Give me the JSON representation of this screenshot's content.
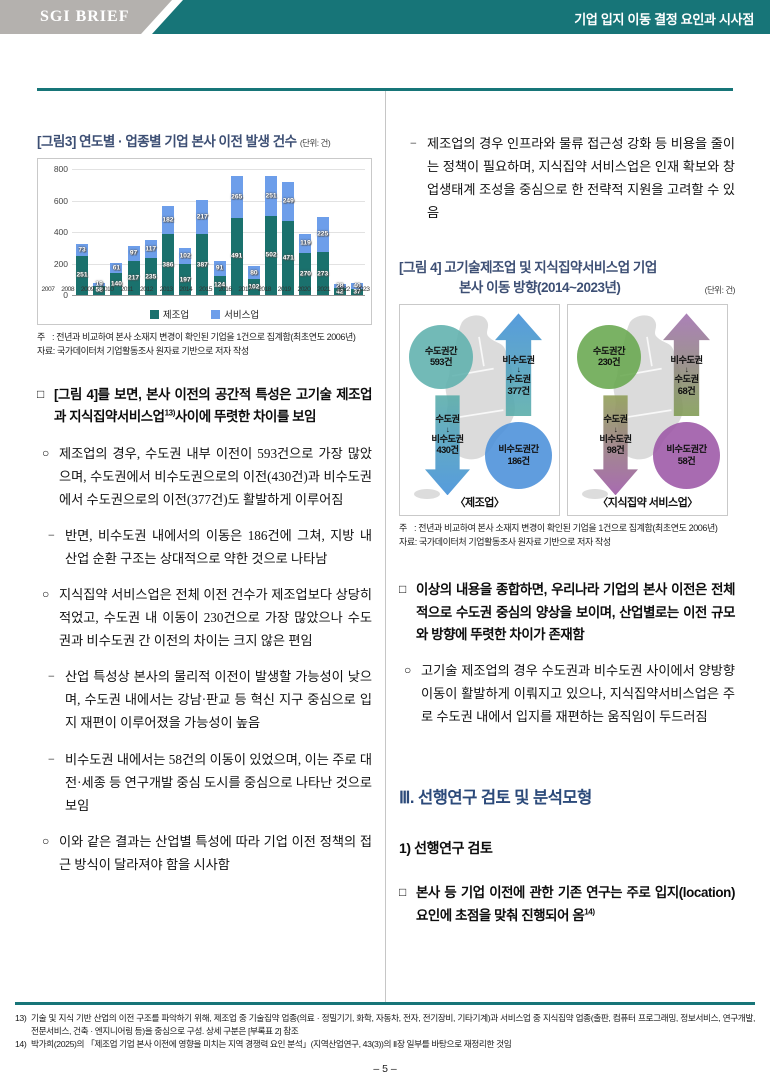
{
  "header": {
    "brand": "SGI BRIEF",
    "title": "기업 입지 이동 결정 요인과 시사점",
    "accent_color": "#177578",
    "gray_color": "#b4b1ae"
  },
  "figure3": {
    "title": "[그림3] 연도별 · 업종별 기업 본사 이전 발생 건수",
    "unit": "(단위: 건)",
    "note_label": "주",
    "note_text": ": 전년과 비교하여 본사 소재지 변경이 확인된 기업을 1건으로 집계함(최초연도 2006년)",
    "source": "자료: 국가데이터처 기업활동조사 원자료 기반으로 저자 작성"
  },
  "chart_data": {
    "type": "bar",
    "stacked": true,
    "title": "[그림3] 연도별 · 업종별 기업 본사 이전 발생 건수",
    "unit": "건",
    "categories": [
      2007,
      2008,
      2009,
      2010,
      2011,
      2012,
      2013,
      2014,
      2015,
      2016,
      2017,
      2018,
      2019,
      2020,
      2021,
      2022,
      2023
    ],
    "series": [
      {
        "name": "제조업",
        "color": "#1a716d",
        "values": [
          251,
          58,
          140,
          217,
          235,
          386,
          197,
          387,
          124,
          491,
          102,
          502,
          471,
          270,
          273,
          42,
          37
        ]
      },
      {
        "name": "서비스업",
        "color": "#6d9eea",
        "values": [
          73,
          19,
          61,
          97,
          117,
          182,
          102,
          217,
          91,
          265,
          80,
          251,
          249,
          119,
          225,
          28,
          40
        ]
      }
    ],
    "ylim": [
      0,
      800
    ],
    "yticks": [
      0,
      200,
      400,
      600,
      800
    ],
    "grid": true,
    "legend_position": "bottom"
  },
  "left_paragraphs": [
    {
      "marker": "□",
      "pre": "[그림 4]를 보면, 본사 이전의 공간적 특성은 고기술 제조업과 지식집약서비스업",
      "sup": "13)",
      "post": "사이에 뚜렷한 차이를 보임"
    },
    {
      "marker": "○",
      "text": "제조업의 경우, 수도권 내부 이전이 593건으로 가장 많았으며, 수도권에서 비수도권으로의 이전(430건)과 비수도권에서 수도권으로의 이전(377건)도 활발하게 이루어짐"
    },
    {
      "marker": "−",
      "text": "반면, 비수도권 내에서의 이동은 186건에 그쳐, 지방 내 산업 순환 구조는 상대적으로 약한 것으로 나타남"
    },
    {
      "marker": "○",
      "text": "지식집약 서비스업은 전체 이전 건수가 제조업보다 상당히 적었고, 수도권 내 이동이 230건으로 가장 많았으나 수도권과 비수도권 간 이전의 차이는 크지 않은 편임"
    },
    {
      "marker": "−",
      "text": "산업 특성상 본사의 물리적 이전이 발생할 가능성이 낮으며, 수도권 내에서는 강남·판교 등 혁신 지구 중심으로 입지 재편이 이루어졌을 가능성이 높음"
    },
    {
      "marker": "−",
      "text": "비수도권 내에서는 58건의 이동이 있었으며, 이는 주로 대전·세종 등 연구개발 중심 도시를 중심으로 나타난 것으로 보임"
    },
    {
      "marker": "○",
      "text": "이와 같은 결과는 산업별 특성에 따라 기업 이전 정책의 접근 방식이 달라져야 함을 시사함"
    }
  ],
  "right_top_paragraph": {
    "marker": "−",
    "text": "제조업의 경우 인프라와 물류 접근성 강화 등 비용을 줄이는 정책이 필요하며, 지식집약 서비스업은 인재 확보와 창업생태계 조성을 중심으로 한 전략적 지원을 고려할 수 있음"
  },
  "figure4": {
    "title_line1": "[그림 4] 고기술제조업 및 지식집약서비스업 기업",
    "title_line2": "본사 이동 방향(2014~2023년)",
    "unit": "(단위: 건)",
    "panels": [
      {
        "caption": "〈제조업〉",
        "shapes": [
          {
            "kind": "circle",
            "lines": [
              "수도권간",
              "593건"
            ],
            "color": "#5fb1ad",
            "color2": "#5fb1ad"
          },
          {
            "kind": "arrow-up",
            "lines": [
              "비수도권",
              "↓",
              "수도권",
              "377건"
            ],
            "color": "#3f8ed8",
            "color2": "#58aca8"
          },
          {
            "kind": "arrow-down",
            "lines": [
              "수도권",
              "↓",
              "비수도권",
              "430건"
            ],
            "color": "#58aca8",
            "color2": "#3f8ed8"
          },
          {
            "kind": "circle",
            "lines": [
              "비수도권간",
              "186건"
            ],
            "color": "#4a90d9",
            "color2": "#4a90d9"
          }
        ]
      },
      {
        "caption": "〈지식집약 서비스업〉",
        "shapes": [
          {
            "kind": "circle",
            "lines": [
              "수도권간",
              "230건"
            ],
            "color": "#68a74f",
            "color2": "#68a74f"
          },
          {
            "kind": "arrow-up",
            "lines": [
              "비수도권",
              "↓",
              "수도권",
              "68건"
            ],
            "color": "#a06fae",
            "color2": "#7f9b52"
          },
          {
            "kind": "arrow-down",
            "lines": [
              "수도권",
              "↓",
              "비수도권",
              "98건"
            ],
            "color": "#8f9e55",
            "color2": "#9c57a6"
          },
          {
            "kind": "circle",
            "lines": [
              "비수도권간",
              "58건"
            ],
            "color": "#9c57a6",
            "color2": "#9c57a6"
          }
        ]
      }
    ],
    "note_label": "주",
    "note_text": ": 전년과 비교하여 본사 소재지 변경이 확인된 기업을 1건으로 집계함(최초연도 2006년)",
    "source": "자료: 국가데이터처 기업활동조사 원자료 기반으로 저자 작성"
  },
  "right_paragraphs": [
    {
      "marker": "□",
      "text": "이상의 내용을 종합하면, 우리나라 기업의 본사 이전은 전체적으로 수도권 중심의 양상을 보이며, 산업별로는 이전 규모와 방향에 뚜렷한 차이가 존재함"
    },
    {
      "marker": "○",
      "text": "고기술 제조업의 경우 수도권과 비수도권 사이에서 양방향 이동이 활발하게 이뤄지고 있으나, 지식집약서비스업은 주로 수도권 내에서 입지를 재편하는 움직임이 두드러짐"
    }
  ],
  "section_heading": "Ⅲ. 선행연구 검토 및 분석모형",
  "sub_heading": "1) 선행연구 검토",
  "right_last_paragraph": {
    "marker": "□",
    "pre": "본사 등 기업 이전에 관한 기존 연구는 주로 입지(location) 요인에 초점을 맞춰 진행되어 옴",
    "sup": "14)"
  },
  "footnotes": [
    {
      "num": "13)",
      "text": "기술 및 지식 기반 산업의 이전 구조를 파악하기 위해, 제조업 중 기술집약 업종(의료 · 정밀기기, 화학, 자동차, 전자, 전기장비, 기타기계)과 서비스업 중 지식집약 업종(출판, 컴퓨터 프로그래밍, 정보서비스, 연구개발, 전문서비스, 건축 · 엔지니어링 등)을 중심으로 구성. 상세 구분은 [부록표 2] 참조"
    },
    {
      "num": "14)",
      "text": "박가희(2025)의 「제조업 기업 본사 이전에 영향을 미치는 지역 경쟁력 요인 분석」(지역산업연구, 43(3))의 Ⅱ장 일부를 바탕으로 재정리한 것임"
    }
  ],
  "page_number": "– 5 –"
}
